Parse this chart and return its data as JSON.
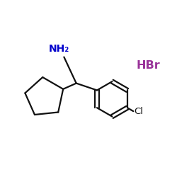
{
  "background_color": "#ffffff",
  "bond_color": "#111111",
  "nh2_color": "#0000cc",
  "hbr_color": "#993399",
  "cl_color": "#111111",
  "hbr_text": "HBr",
  "nh2_text": "NH₂",
  "cl_text": "Cl",
  "bond_lw": 1.6,
  "figsize": [
    2.5,
    2.5
  ],
  "dpi": 100,
  "xlim": [
    0,
    10
  ],
  "ylim": [
    0,
    10
  ]
}
